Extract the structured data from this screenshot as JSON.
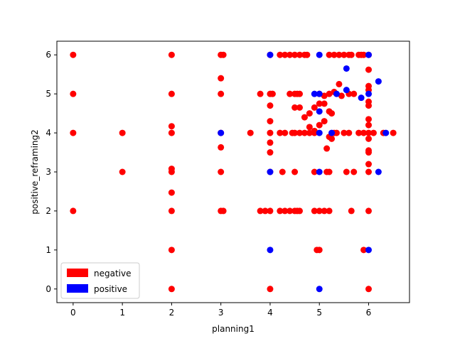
{
  "chart_data": {
    "type": "scatter",
    "title": "",
    "xlabel": "planning1",
    "ylabel": "positive_reframing2",
    "xlim": [
      -0.33,
      6.83
    ],
    "ylim": [
      -0.35,
      6.35
    ],
    "xticks": [
      0,
      1,
      2,
      3,
      4,
      5,
      6
    ],
    "yticks": [
      0,
      1,
      2,
      3,
      4,
      5,
      6
    ],
    "grid": false,
    "legend_placement": "lower-left",
    "series": [
      {
        "name": "negative",
        "color": "#ff0000",
        "points": [
          [
            0,
            6
          ],
          [
            0,
            5
          ],
          [
            0,
            4
          ],
          [
            0,
            2
          ],
          [
            1,
            4
          ],
          [
            1,
            3
          ],
          [
            2,
            6
          ],
          [
            2,
            5
          ],
          [
            2,
            4.17
          ],
          [
            2,
            4
          ],
          [
            2,
            3.08
          ],
          [
            2,
            3
          ],
          [
            2,
            2.47
          ],
          [
            2,
            2
          ],
          [
            2,
            1
          ],
          [
            2,
            0
          ],
          [
            3,
            6
          ],
          [
            3.05,
            6
          ],
          [
            3,
            5.4
          ],
          [
            3,
            5
          ],
          [
            3,
            4
          ],
          [
            3,
            3.63
          ],
          [
            3,
            3
          ],
          [
            3,
            2
          ],
          [
            3.05,
            2
          ],
          [
            3.6,
            4
          ],
          [
            3.8,
            5
          ],
          [
            3.8,
            2
          ],
          [
            3.9,
            2
          ],
          [
            4,
            6
          ],
          [
            4,
            5
          ],
          [
            4.05,
            5
          ],
          [
            4,
            4.7
          ],
          [
            4,
            4.3
          ],
          [
            4,
            4
          ],
          [
            4,
            3.75
          ],
          [
            4,
            3.5
          ],
          [
            4,
            3
          ],
          [
            4,
            2
          ],
          [
            4,
            0
          ],
          [
            4.2,
            6
          ],
          [
            4.3,
            6
          ],
          [
            4.4,
            6
          ],
          [
            4.5,
            6
          ],
          [
            4.6,
            6
          ],
          [
            4.7,
            6
          ],
          [
            4.75,
            6
          ],
          [
            4.2,
            4
          ],
          [
            4.3,
            4
          ],
          [
            4.45,
            4
          ],
          [
            4.5,
            4
          ],
          [
            4.6,
            4
          ],
          [
            4.7,
            4
          ],
          [
            4.8,
            4
          ],
          [
            4.9,
            4
          ],
          [
            4.4,
            5
          ],
          [
            4.5,
            5
          ],
          [
            4.55,
            5
          ],
          [
            4.6,
            5
          ],
          [
            4.5,
            4.65
          ],
          [
            4.6,
            4.65
          ],
          [
            4.7,
            4.4
          ],
          [
            4.8,
            4.5
          ],
          [
            4.8,
            4.15
          ],
          [
            4.9,
            4.05
          ],
          [
            4.25,
            3
          ],
          [
            4.5,
            3
          ],
          [
            4.9,
            3
          ],
          [
            5.15,
            3
          ],
          [
            5.2,
            3
          ],
          [
            5.55,
            3
          ],
          [
            5.7,
            3
          ],
          [
            4.2,
            2
          ],
          [
            4.3,
            2
          ],
          [
            4.4,
            2
          ],
          [
            4.5,
            2
          ],
          [
            4.55,
            2
          ],
          [
            4.6,
            2
          ],
          [
            4.9,
            2
          ],
          [
            5,
            2
          ],
          [
            5.1,
            2
          ],
          [
            5.2,
            2
          ],
          [
            5.65,
            2
          ],
          [
            4.95,
            1
          ],
          [
            5,
            1
          ],
          [
            5.9,
            1
          ],
          [
            4.9,
            4.65
          ],
          [
            5,
            4.75
          ],
          [
            5.1,
            4.75
          ],
          [
            5,
            4.2
          ],
          [
            5.1,
            4.3
          ],
          [
            5.2,
            4.55
          ],
          [
            5.25,
            4.5
          ],
          [
            5.3,
            4.0
          ],
          [
            5.35,
            4.0
          ],
          [
            5,
            5
          ],
          [
            5.1,
            4.95
          ],
          [
            5.2,
            5
          ],
          [
            5.3,
            5.05
          ],
          [
            5.4,
            5.25
          ],
          [
            5.45,
            4.95
          ],
          [
            5.6,
            5
          ],
          [
            5.7,
            5
          ],
          [
            5.15,
            3.6
          ],
          [
            5.2,
            3.9
          ],
          [
            5.25,
            3.85
          ],
          [
            5.2,
            6
          ],
          [
            5.3,
            6
          ],
          [
            5.4,
            6
          ],
          [
            5.5,
            6
          ],
          [
            5.6,
            6
          ],
          [
            5.65,
            6
          ],
          [
            5.8,
            6
          ],
          [
            5.85,
            6
          ],
          [
            5.9,
            6
          ],
          [
            5.5,
            4.0
          ],
          [
            5.6,
            4.0
          ],
          [
            5.8,
            4.0
          ],
          [
            5.9,
            4.0
          ],
          [
            6,
            6
          ],
          [
            6,
            5.62
          ],
          [
            6,
            5.2
          ],
          [
            6,
            5.1
          ],
          [
            6,
            4.8
          ],
          [
            6,
            4.7
          ],
          [
            6,
            4.35
          ],
          [
            6,
            4.2
          ],
          [
            6,
            4.0
          ],
          [
            6,
            3.85
          ],
          [
            6,
            3.55
          ],
          [
            6,
            3.5
          ],
          [
            6,
            3.2
          ],
          [
            6,
            3
          ],
          [
            6,
            2
          ],
          [
            6,
            0
          ],
          [
            6.1,
            4.0
          ],
          [
            6.3,
            4.0
          ],
          [
            6.5,
            4.0
          ]
        ]
      },
      {
        "name": "positive",
        "color": "#0000ff",
        "points": [
          [
            3,
            4
          ],
          [
            4,
            6
          ],
          [
            4,
            3
          ],
          [
            4,
            1
          ],
          [
            4.9,
            5
          ],
          [
            5,
            5
          ],
          [
            5,
            6
          ],
          [
            5,
            4.55
          ],
          [
            5,
            4
          ],
          [
            5,
            3
          ],
          [
            5,
            0
          ],
          [
            5.25,
            4
          ],
          [
            5.35,
            5
          ],
          [
            5.55,
            5.65
          ],
          [
            5.55,
            5.1
          ],
          [
            5.85,
            4.9
          ],
          [
            6,
            6
          ],
          [
            6,
            5
          ],
          [
            6,
            1
          ],
          [
            6.2,
            5.32
          ],
          [
            6.2,
            3
          ],
          [
            6.35,
            4
          ]
        ]
      }
    ]
  }
}
